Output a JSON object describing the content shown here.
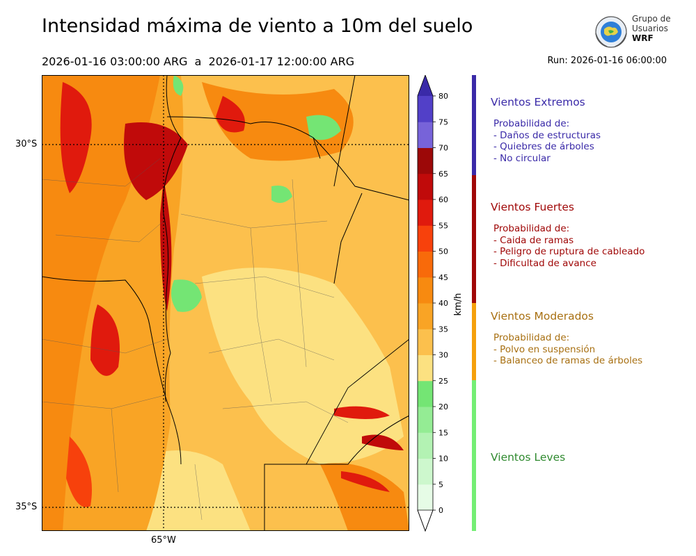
{
  "header": {
    "title": "Intensidad máxima de viento a 10m del suelo",
    "period": "2026-01-16 03:00:00 ARG  a  2026-01-17 12:00:00 ARG",
    "run": "Run: 2026-01-16 06:00:00"
  },
  "logo": {
    "line1": "Grupo de",
    "line2": "Usuarios",
    "line3": "WRF"
  },
  "map": {
    "lat_labels": [
      "30°S",
      "35°S"
    ],
    "lon_labels": [
      "65°W"
    ]
  },
  "colorbar": {
    "unit": "km/h",
    "ticks": [
      "0",
      "5",
      "10",
      "15",
      "20",
      "25",
      "30",
      "35",
      "40",
      "45",
      "50",
      "55",
      "60",
      "65",
      "70",
      "75",
      "80"
    ],
    "colors": [
      "#e6fce6",
      "#cdf7cd",
      "#b3f2b3",
      "#94ec94",
      "#74e574",
      "#fce181",
      "#fcc04d",
      "#f9a425",
      "#f78a10",
      "#f86a0a",
      "#f7410c",
      "#e01a0d",
      "#c00a0a",
      "#9c0808",
      "#7763d9",
      "#5240c8",
      "#3f26b0"
    ],
    "over_color": "#3a2aa8"
  },
  "categories": [
    {
      "title": "Vientos Extremos",
      "color": "#3a2aa8",
      "lines": [
        "Probabilidad de:",
        "- Daños de estructuras",
        "- Quiebres de árboles",
        "- No circular"
      ]
    },
    {
      "title": "Vientos Fuertes",
      "color": "#a00808",
      "lines": [
        "Probabilidad de:",
        "- Caida de ramas",
        "- Peligro de ruptura de cableado",
        "- Dificultad de avance"
      ]
    },
    {
      "title": "Vientos Moderados",
      "color": "#a87012",
      "lines": [
        "Probabilidad de:",
        "- Polvo en suspensión",
        "- Balanceo de ramas de árboles"
      ]
    },
    {
      "title": "Vientos Leves",
      "color": "#2f8a2f",
      "lines": []
    }
  ],
  "legend_bar_colors": [
    "#3a2aa8",
    "#a00808",
    "#f5a00c",
    "#74ee74"
  ]
}
